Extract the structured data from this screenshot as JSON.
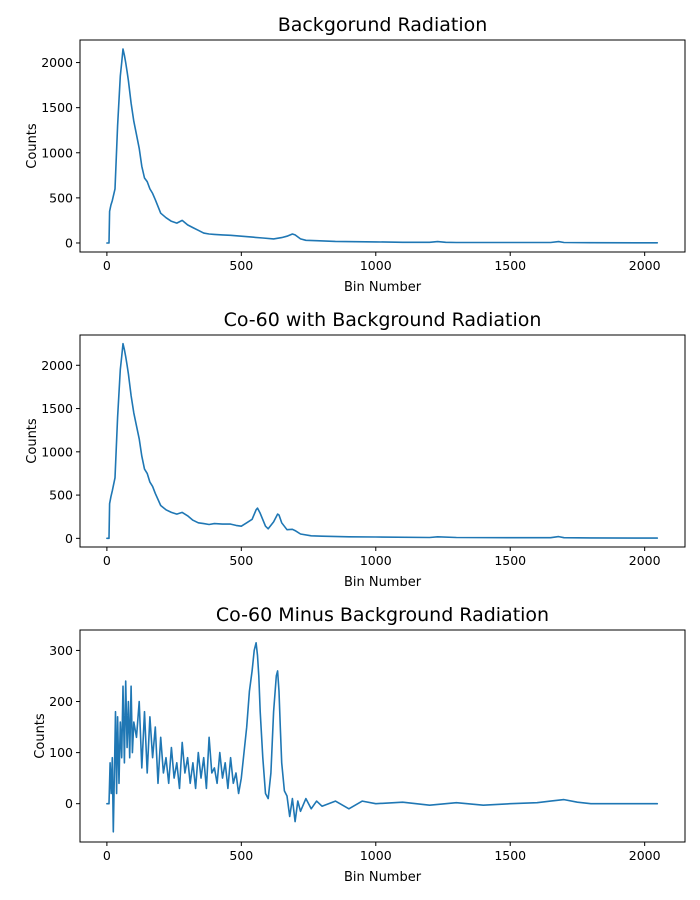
{
  "colors": {
    "series": "#1f77b4",
    "axes": "#000000",
    "background": "#ffffff"
  },
  "chart_data": [
    {
      "type": "line",
      "title": "Backgorund Radiation",
      "xlabel": "Bin Number",
      "ylabel": "Counts",
      "xlim": [
        -100,
        2150
      ],
      "ylim": [
        -100,
        2250
      ],
      "xticks": [
        0,
        500,
        1000,
        1500,
        2000
      ],
      "yticks": [
        0,
        500,
        1000,
        1500,
        2000
      ],
      "grid": false,
      "series": [
        {
          "x": [
            0,
            8,
            10,
            15,
            20,
            30,
            40,
            50,
            55,
            60,
            65,
            70,
            75,
            80,
            90,
            100,
            110,
            120,
            130,
            140,
            150,
            160,
            170,
            180,
            200,
            220,
            240,
            260,
            280,
            300,
            320,
            340,
            360,
            380,
            400,
            430,
            460,
            500,
            540,
            580,
            620,
            650,
            670,
            690,
            700,
            720,
            740,
            780,
            850,
            1000,
            1100,
            1200,
            1230,
            1260,
            1300,
            1500,
            1650,
            1680,
            1700,
            1800,
            2000,
            2047
          ],
          "y": [
            0,
            0,
            350,
            420,
            470,
            600,
            1300,
            1850,
            2000,
            2150,
            2080,
            2000,
            1900,
            1800,
            1550,
            1350,
            1200,
            1050,
            850,
            720,
            680,
            600,
            550,
            480,
            330,
            280,
            240,
            220,
            250,
            200,
            170,
            140,
            110,
            100,
            95,
            90,
            85,
            75,
            65,
            55,
            45,
            60,
            75,
            100,
            90,
            45,
            30,
            25,
            18,
            12,
            8,
            8,
            15,
            8,
            5,
            5,
            5,
            15,
            5,
            3,
            2,
            2
          ]
        }
      ]
    },
    {
      "type": "line",
      "title": "Co-60 with Background Radiation",
      "xlabel": "Bin Number",
      "ylabel": "Counts",
      "xlim": [
        -100,
        2150
      ],
      "ylim": [
        -100,
        2350
      ],
      "xticks": [
        0,
        500,
        1000,
        1500,
        2000
      ],
      "yticks": [
        0,
        500,
        1000,
        1500,
        2000
      ],
      "grid": false,
      "series": [
        {
          "x": [
            0,
            8,
            10,
            15,
            20,
            30,
            40,
            50,
            55,
            60,
            65,
            70,
            75,
            80,
            90,
            100,
            110,
            120,
            130,
            140,
            150,
            160,
            170,
            180,
            200,
            220,
            240,
            260,
            280,
            300,
            320,
            340,
            360,
            380,
            400,
            430,
            460,
            480,
            500,
            520,
            540,
            555,
            560,
            570,
            590,
            600,
            620,
            635,
            640,
            650,
            670,
            690,
            700,
            720,
            760,
            800,
            900,
            1000,
            1200,
            1230,
            1300,
            1500,
            1650,
            1680,
            1700,
            1800,
            2000,
            2047
          ],
          "y": [
            0,
            0,
            400,
            480,
            550,
            700,
            1400,
            1950,
            2100,
            2250,
            2180,
            2100,
            2000,
            1900,
            1650,
            1450,
            1300,
            1150,
            950,
            800,
            750,
            650,
            600,
            520,
            380,
            330,
            300,
            280,
            300,
            260,
            210,
            180,
            170,
            160,
            170,
            165,
            165,
            150,
            140,
            180,
            220,
            330,
            350,
            290,
            140,
            110,
            190,
            280,
            270,
            180,
            100,
            105,
            90,
            50,
            30,
            25,
            18,
            15,
            10,
            18,
            10,
            8,
            8,
            20,
            8,
            5,
            3,
            3
          ]
        }
      ]
    },
    {
      "type": "line",
      "title": "Co-60 Minus Background Radiation",
      "xlabel": "Bin Number",
      "ylabel": "Counts",
      "xlim": [
        -100,
        2150
      ],
      "ylim": [
        -75,
        340
      ],
      "xticks": [
        0,
        500,
        1000,
        1500,
        2000
      ],
      "yticks": [
        0,
        100,
        200,
        300
      ],
      "grid": false,
      "series": [
        {
          "x": [
            0,
            8,
            12,
            16,
            20,
            24,
            28,
            32,
            36,
            40,
            45,
            50,
            55,
            60,
            65,
            70,
            75,
            80,
            85,
            90,
            95,
            100,
            110,
            120,
            130,
            140,
            150,
            160,
            170,
            180,
            190,
            200,
            210,
            220,
            230,
            240,
            250,
            260,
            270,
            280,
            290,
            300,
            310,
            320,
            330,
            340,
            350,
            360,
            370,
            380,
            390,
            400,
            410,
            420,
            430,
            440,
            450,
            460,
            470,
            480,
            490,
            500,
            510,
            520,
            530,
            540,
            548,
            555,
            560,
            565,
            570,
            580,
            590,
            600,
            610,
            620,
            630,
            635,
            640,
            645,
            650,
            660,
            670,
            680,
            690,
            700,
            710,
            720,
            740,
            760,
            780,
            800,
            850,
            900,
            950,
            1000,
            1100,
            1200,
            1300,
            1400,
            1500,
            1600,
            1650,
            1700,
            1750,
            1800,
            1900,
            2000,
            2047
          ],
          "y": [
            0,
            0,
            80,
            20,
            90,
            -55,
            60,
            180,
            20,
            170,
            40,
            160,
            90,
            230,
            80,
            240,
            110,
            200,
            90,
            230,
            100,
            160,
            130,
            200,
            70,
            180,
            60,
            170,
            90,
            150,
            40,
            130,
            60,
            90,
            40,
            110,
            50,
            80,
            30,
            120,
            60,
            90,
            40,
            80,
            30,
            100,
            50,
            90,
            30,
            130,
            60,
            70,
            40,
            100,
            50,
            80,
            30,
            90,
            40,
            60,
            20,
            50,
            100,
            150,
            220,
            260,
            300,
            315,
            290,
            250,
            180,
            90,
            20,
            10,
            60,
            180,
            250,
            260,
            220,
            150,
            80,
            25,
            15,
            -25,
            10,
            -35,
            5,
            -15,
            10,
            -10,
            5,
            -5,
            5,
            -10,
            5,
            0,
            3,
            -3,
            2,
            -3,
            0,
            2,
            5,
            8,
            3,
            0,
            0,
            0,
            0
          ]
        }
      ]
    }
  ]
}
